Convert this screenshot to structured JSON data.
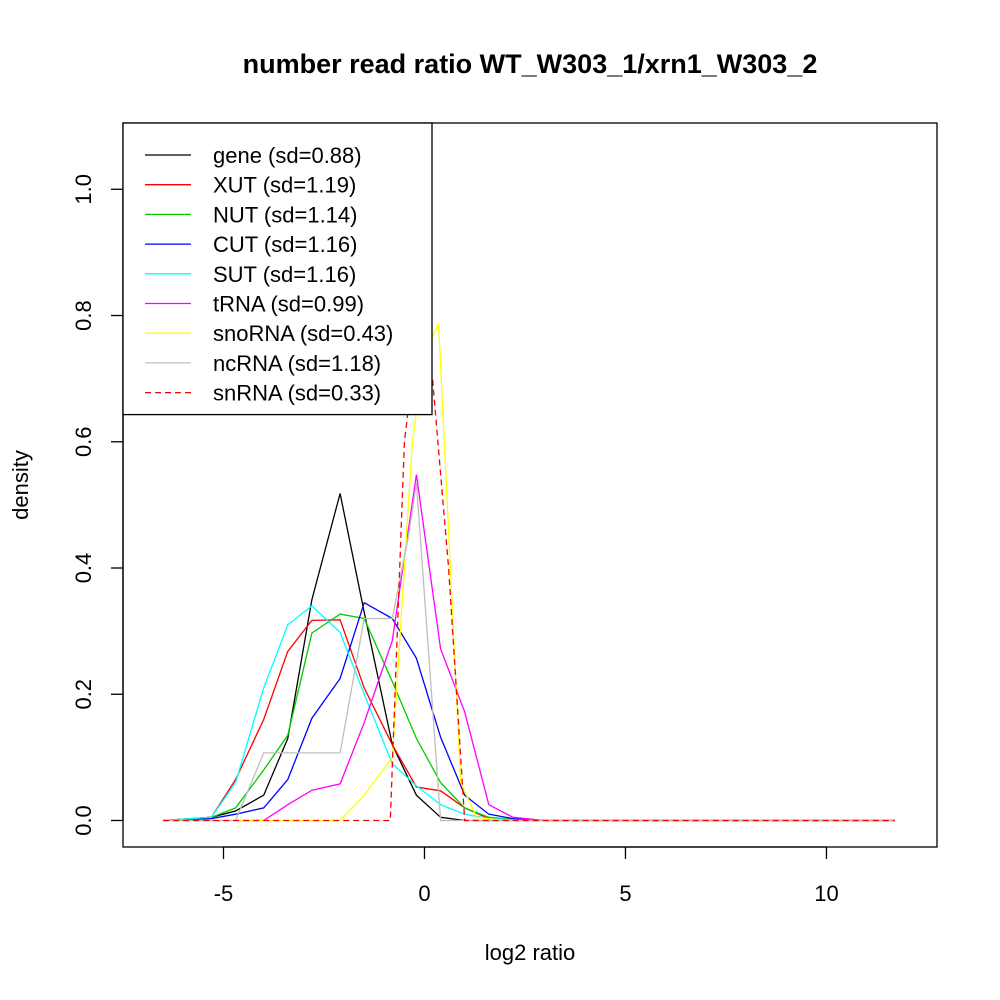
{
  "chart_data": {
    "type": "line",
    "title": "number read ratio WT_W303_1/xrn1_W303_2",
    "xlabel": "log2 ratio",
    "ylabel": "density",
    "xlim": [
      -7.5,
      12.75
    ],
    "ylim": [
      -0.042,
      1.105
    ],
    "x_ticks": [
      -5,
      0,
      5,
      10
    ],
    "x_tick_labels": [
      "-5",
      "0",
      "5",
      "10"
    ],
    "y_ticks": [
      0.0,
      0.2,
      0.4,
      0.6,
      0.8,
      1.0
    ],
    "y_tick_labels": [
      "0.0",
      "0.2",
      "0.4",
      "0.6",
      "0.8",
      "1.0"
    ],
    "grid": false,
    "legend_position": "top-left",
    "series": [
      {
        "name": "gene (sd=0.88)",
        "color": "#000000",
        "dash": "solid",
        "points": [
          [
            -6.5,
            0.0
          ],
          [
            -5.3,
            0.005
          ],
          [
            -4.7,
            0.015
          ],
          [
            -4.0,
            0.04
          ],
          [
            -3.4,
            0.13
          ],
          [
            -2.8,
            0.35
          ],
          [
            -2.1,
            0.518
          ],
          [
            -1.5,
            0.33
          ],
          [
            -0.8,
            0.12
          ],
          [
            -0.2,
            0.04
          ],
          [
            0.4,
            0.005
          ],
          [
            1.0,
            0.0
          ],
          [
            2.0,
            0.0
          ],
          [
            11.7,
            0.0
          ]
        ]
      },
      {
        "name": "XUT (sd=1.19)",
        "color": "#ff0000",
        "dash": "solid",
        "points": [
          [
            -6.5,
            0.0
          ],
          [
            -5.3,
            0.005
          ],
          [
            -4.7,
            0.065
          ],
          [
            -4.0,
            0.16
          ],
          [
            -3.4,
            0.268
          ],
          [
            -2.8,
            0.317
          ],
          [
            -2.1,
            0.318
          ],
          [
            -1.5,
            0.21
          ],
          [
            -0.8,
            0.12
          ],
          [
            -0.2,
            0.053
          ],
          [
            0.4,
            0.047
          ],
          [
            1.0,
            0.02
          ],
          [
            1.6,
            0.003
          ],
          [
            2.5,
            0.0
          ],
          [
            11.7,
            0.0
          ]
        ]
      },
      {
        "name": "NUT (sd=1.14)",
        "color": "#00cd00",
        "dash": "solid",
        "points": [
          [
            -6.5,
            0.0
          ],
          [
            -5.3,
            0.005
          ],
          [
            -4.7,
            0.02
          ],
          [
            -4.0,
            0.08
          ],
          [
            -3.4,
            0.135
          ],
          [
            -2.8,
            0.297
          ],
          [
            -2.1,
            0.327
          ],
          [
            -1.5,
            0.32
          ],
          [
            -0.8,
            0.22
          ],
          [
            -0.2,
            0.13
          ],
          [
            0.4,
            0.06
          ],
          [
            1.0,
            0.02
          ],
          [
            1.6,
            0.005
          ],
          [
            2.5,
            0.0
          ],
          [
            11.7,
            0.0
          ]
        ]
      },
      {
        "name": "CUT (sd=1.16)",
        "color": "#0000ff",
        "dash": "solid",
        "points": [
          [
            -6.5,
            0.0
          ],
          [
            -5.3,
            0.003
          ],
          [
            -4.7,
            0.01
          ],
          [
            -4.0,
            0.02
          ],
          [
            -3.4,
            0.065
          ],
          [
            -2.8,
            0.162
          ],
          [
            -2.1,
            0.225
          ],
          [
            -1.5,
            0.345
          ],
          [
            -0.8,
            0.32
          ],
          [
            -0.2,
            0.257
          ],
          [
            0.4,
            0.132
          ],
          [
            1.0,
            0.04
          ],
          [
            1.6,
            0.01
          ],
          [
            2.2,
            0.003
          ],
          [
            3.0,
            0.0
          ],
          [
            11.7,
            0.0
          ]
        ]
      },
      {
        "name": "SUT (sd=1.16)",
        "color": "#00ffff",
        "dash": "solid",
        "points": [
          [
            -6.5,
            0.0
          ],
          [
            -5.3,
            0.005
          ],
          [
            -4.7,
            0.06
          ],
          [
            -4.0,
            0.21
          ],
          [
            -3.4,
            0.31
          ],
          [
            -2.8,
            0.34
          ],
          [
            -2.1,
            0.298
          ],
          [
            -1.5,
            0.2
          ],
          [
            -0.8,
            0.09
          ],
          [
            -0.2,
            0.055
          ],
          [
            0.4,
            0.025
          ],
          [
            1.0,
            0.01
          ],
          [
            1.6,
            0.003
          ],
          [
            2.5,
            0.0
          ],
          [
            11.7,
            0.0
          ]
        ]
      },
      {
        "name": "tRNA (sd=0.99)",
        "color": "#ff00ff",
        "dash": "solid",
        "points": [
          [
            -6.5,
            0.0
          ],
          [
            -4.0,
            0.0
          ],
          [
            -3.4,
            0.025
          ],
          [
            -2.8,
            0.048
          ],
          [
            -2.1,
            0.058
          ],
          [
            -1.5,
            0.155
          ],
          [
            -0.8,
            0.285
          ],
          [
            -0.2,
            0.548
          ],
          [
            0.4,
            0.272
          ],
          [
            1.0,
            0.172
          ],
          [
            1.6,
            0.025
          ],
          [
            2.2,
            0.005
          ],
          [
            3.0,
            0.0
          ],
          [
            11.7,
            0.0
          ]
        ]
      },
      {
        "name": "snoRNA (sd=0.43)",
        "color": "#ffff00",
        "dash": "solid",
        "points": [
          [
            -6.5,
            0.0
          ],
          [
            -2.1,
            0.0
          ],
          [
            -1.5,
            0.04
          ],
          [
            -0.8,
            0.1
          ],
          [
            -0.3,
            0.6
          ],
          [
            0.0,
            0.74
          ],
          [
            0.35,
            0.787
          ],
          [
            0.9,
            0.06
          ],
          [
            1.3,
            0.005
          ],
          [
            2.0,
            0.0
          ],
          [
            11.7,
            0.0
          ]
        ]
      },
      {
        "name": "ncRNA (sd=1.18)",
        "color": "#bebebe",
        "dash": "solid",
        "points": [
          [
            -6.5,
            0.0
          ],
          [
            -4.7,
            0.0
          ],
          [
            -4.0,
            0.107
          ],
          [
            -3.4,
            0.107
          ],
          [
            -2.8,
            0.107
          ],
          [
            -2.1,
            0.107
          ],
          [
            -1.5,
            0.32
          ],
          [
            -0.8,
            0.32
          ],
          [
            -0.4,
            0.45
          ],
          [
            -0.2,
            0.535
          ],
          [
            0.4,
            0.0
          ],
          [
            1.0,
            0.0
          ],
          [
            11.7,
            0.0
          ]
        ]
      },
      {
        "name": "snRNA (sd=0.33)",
        "color": "#ff0000",
        "dash": "dashed",
        "points": [
          [
            -6.5,
            0.0
          ],
          [
            -0.85,
            0.0
          ],
          [
            -0.5,
            0.6
          ],
          [
            -0.2,
            0.76
          ],
          [
            0.2,
            0.7
          ],
          [
            0.6,
            0.4
          ],
          [
            1.0,
            0.0
          ],
          [
            11.7,
            0.0
          ]
        ]
      }
    ]
  }
}
